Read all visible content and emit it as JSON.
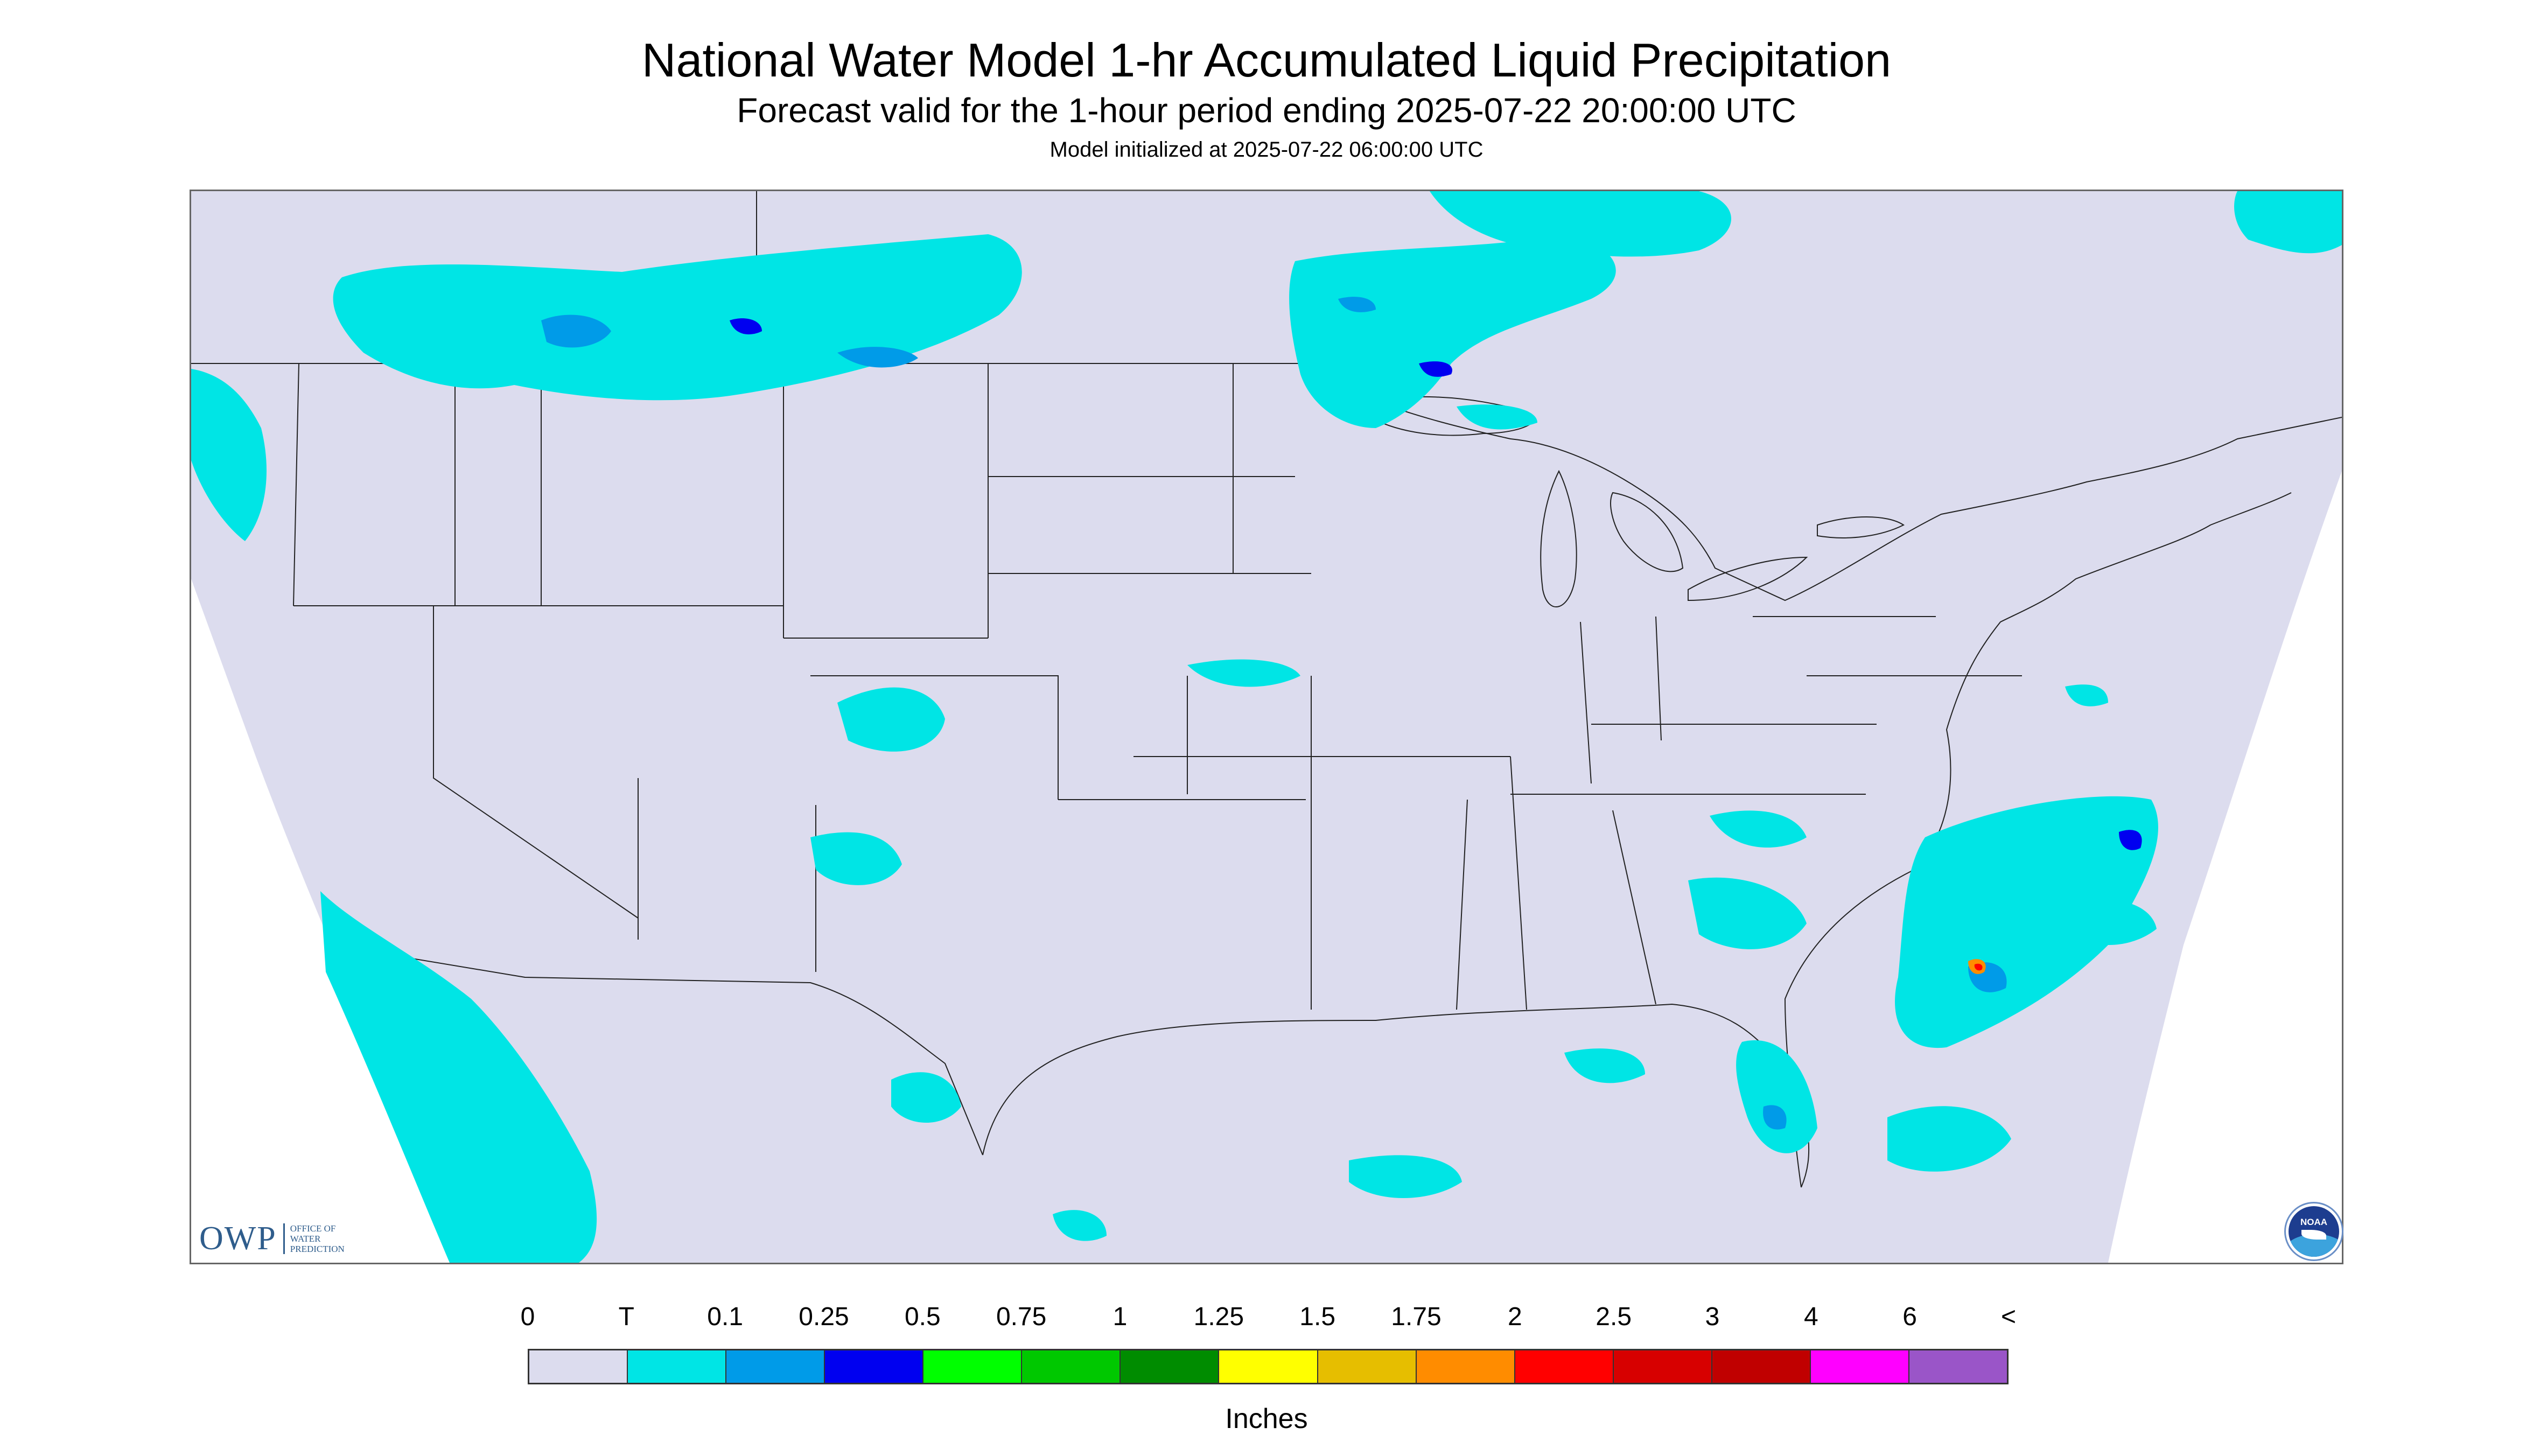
{
  "header": {
    "title": "National Water Model 1-hr Accumulated Liquid Precipitation",
    "subtitle": "Forecast valid for the 1-hour period ending 2025-07-22 20:00:00 UTC",
    "initialized": "Model initialized at 2025-07-22 06:00:00 UTC"
  },
  "map": {
    "background_color": "#dcdcee",
    "outside_domain_color": "#ffffff",
    "boundary_color": "#222222",
    "precip_light_color": "#00e5e5",
    "precip_mid_color": "#009be8",
    "precip_heavy_color": "#0000f0",
    "precip_peak_colors": [
      "#ff0000",
      "#ff8c00",
      "#ffff00"
    ]
  },
  "logos": {
    "owp_text": "OWP",
    "owp_subtext": [
      "OFFICE OF",
      "WATER",
      "PREDICTION"
    ],
    "noaa_text": "NOAA",
    "owp_icon": "owp-logo-icon",
    "noaa_icon": "noaa-logo-icon"
  },
  "legend": {
    "labels": [
      "0",
      "T",
      "0.1",
      "0.25",
      "0.5",
      "0.75",
      "1",
      "1.25",
      "1.5",
      "1.75",
      "2",
      "2.5",
      "3",
      "4",
      "6",
      "<"
    ],
    "colors": [
      "#dcdcee",
      "#00e5e5",
      "#009be8",
      "#0000f0",
      "#00ff00",
      "#00c800",
      "#008c00",
      "#ffff00",
      "#e6be00",
      "#ff8c00",
      "#ff0000",
      "#d70000",
      "#c00000",
      "#ff00ff",
      "#9a55c8"
    ],
    "units": "Inches"
  }
}
